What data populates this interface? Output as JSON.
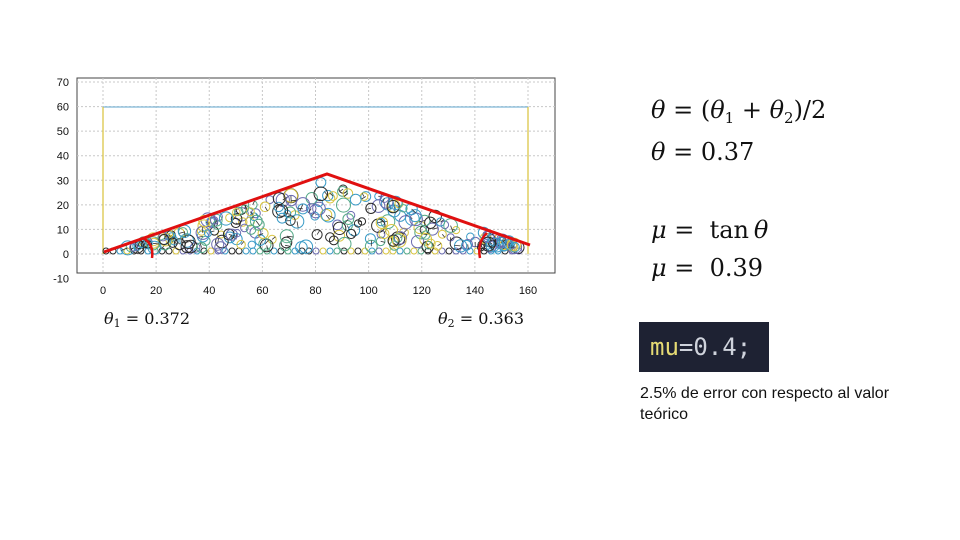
{
  "plot": {
    "x_ticks": [
      "0",
      "20",
      "40",
      "60",
      "80",
      "100",
      "120",
      "140",
      "160"
    ],
    "y_ticks": [
      "70",
      "60",
      "50",
      "40",
      "30",
      "20",
      "10",
      "0",
      "-10"
    ],
    "theta1_label": "θ1 = 0.372",
    "theta2_label": "θ2 = 0.363",
    "colors": {
      "fit_line": "#e01010",
      "container_top": "#7fb7d6",
      "container_walls": "#d8c23a",
      "particle_palette": [
        "#3a9bc7",
        "#d9c541",
        "#2a2a2a",
        "#6a6ab0",
        "#55aa88"
      ]
    }
  },
  "equations": {
    "theta_def": {
      "lhs": "θ",
      "rhs": "= (θ1 + θ2)/2"
    },
    "theta_val": {
      "lhs": "θ",
      "rhs": "= 0.37"
    },
    "mu_def": {
      "lhs": "μ",
      "rhs": "=  tan θ"
    },
    "mu_val": {
      "lhs": "μ",
      "rhs": "=  0.39"
    }
  },
  "code": {
    "var": "mu",
    "eq": "=",
    "num": "0.4",
    "semi": ";"
  },
  "note": "2.5% de error con respecto al valor teórico"
}
